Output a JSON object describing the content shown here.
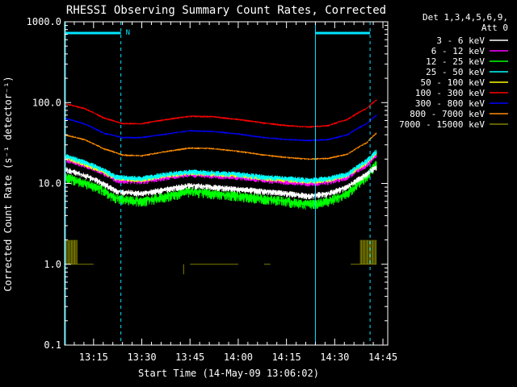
{
  "chart_data": {
    "type": "line",
    "title": "RHESSI Observing Summary Count Rates, Corrected",
    "xlabel": "Start Time (14-May-09 13:06:02)",
    "ylabel": "Corrected Count Rate (s⁻¹ detector⁻¹)",
    "ylog": true,
    "ylim": [
      0.1,
      1000
    ],
    "xlim_minutes": [
      6.0,
      103.0
    ],
    "x_ticks": [
      {
        "label": "13:15",
        "min": 15
      },
      {
        "label": "13:30",
        "min": 30
      },
      {
        "label": "13:45",
        "min": 45
      },
      {
        "label": "14:00",
        "min": 60
      },
      {
        "label": "14:15",
        "min": 75
      },
      {
        "label": "14:30",
        "min": 90
      },
      {
        "label": "14:45",
        "min": 105
      }
    ],
    "y_ticks": [
      {
        "label": "0.1",
        "v": 0.1
      },
      {
        "label": "1.0",
        "v": 1.0
      },
      {
        "label": "10.0",
        "v": 10.0
      },
      {
        "label": "100.0",
        "v": 100.0
      },
      {
        "label": "1000.0",
        "v": 1000.0
      }
    ],
    "legend_header": [
      "Det 1,3,4,5,6,9,",
      "Att 0"
    ],
    "night_marker_label": "N",
    "series": [
      {
        "name": "3 - 6 keV",
        "color": "#ffffff",
        "points": [
          [
            6,
            15
          ],
          [
            16,
            11
          ],
          [
            22,
            8
          ],
          [
            30,
            7.5
          ],
          [
            38,
            8.5
          ],
          [
            45,
            9.5
          ],
          [
            52,
            9
          ],
          [
            60,
            8.5
          ],
          [
            68,
            8
          ],
          [
            75,
            7.5
          ],
          [
            82,
            7
          ],
          [
            88,
            7.5
          ],
          [
            94,
            9
          ],
          [
            100,
            13
          ],
          [
            103,
            16
          ]
        ]
      },
      {
        "name": "6 - 12 keV",
        "color": "#ff00ff",
        "points": [
          [
            6,
            20
          ],
          [
            16,
            15
          ],
          [
            22,
            11
          ],
          [
            30,
            10.5
          ],
          [
            38,
            12
          ],
          [
            45,
            13
          ],
          [
            52,
            12.5
          ],
          [
            60,
            12
          ],
          [
            68,
            11
          ],
          [
            75,
            10.5
          ],
          [
            82,
            10
          ],
          [
            88,
            10.5
          ],
          [
            94,
            12
          ],
          [
            100,
            17
          ],
          [
            103,
            22
          ]
        ]
      },
      {
        "name": "12 - 25 keV",
        "color": "#00ff00",
        "points": [
          [
            6,
            12
          ],
          [
            16,
            9
          ],
          [
            22,
            6.5
          ],
          [
            30,
            6
          ],
          [
            38,
            7
          ],
          [
            45,
            8
          ],
          [
            52,
            7.5
          ],
          [
            60,
            7
          ],
          [
            68,
            6.5
          ],
          [
            75,
            6
          ],
          [
            82,
            5.5
          ],
          [
            88,
            6
          ],
          [
            94,
            7.5
          ],
          [
            100,
            12
          ],
          [
            103,
            18
          ]
        ]
      },
      {
        "name": "25 - 50 keV",
        "color": "#00ffff",
        "points": [
          [
            6,
            22
          ],
          [
            16,
            16
          ],
          [
            22,
            12
          ],
          [
            30,
            11.5
          ],
          [
            38,
            13
          ],
          [
            45,
            14
          ],
          [
            52,
            13.5
          ],
          [
            60,
            13
          ],
          [
            68,
            12
          ],
          [
            75,
            11.5
          ],
          [
            82,
            11
          ],
          [
            88,
            11.5
          ],
          [
            94,
            13
          ],
          [
            100,
            19
          ],
          [
            103,
            25
          ]
        ]
      },
      {
        "name": "50 - 100 keV",
        "color": "#ffff00",
        "points": [
          [
            6,
            21
          ],
          [
            16,
            15
          ],
          [
            22,
            11.5
          ],
          [
            30,
            11
          ],
          [
            38,
            12.5
          ],
          [
            45,
            13.5
          ],
          [
            52,
            13
          ],
          [
            60,
            12.5
          ],
          [
            68,
            11.5
          ],
          [
            75,
            11
          ],
          [
            82,
            10.5
          ],
          [
            88,
            11
          ],
          [
            94,
            12.5
          ],
          [
            100,
            18
          ],
          [
            103,
            24
          ]
        ]
      },
      {
        "name": "100 - 300 keV",
        "color": "#ff0000",
        "points": [
          [
            6,
            97
          ],
          [
            12,
            85
          ],
          [
            18,
            65
          ],
          [
            24,
            55
          ],
          [
            30,
            55
          ],
          [
            38,
            62
          ],
          [
            45,
            68
          ],
          [
            52,
            67
          ],
          [
            60,
            62
          ],
          [
            68,
            56
          ],
          [
            75,
            52
          ],
          [
            82,
            50
          ],
          [
            88,
            52
          ],
          [
            94,
            62
          ],
          [
            100,
            85
          ],
          [
            103,
            108
          ]
        ]
      },
      {
        "name": "300 - 800 keV",
        "color": "#0000ff",
        "points": [
          [
            6,
            64
          ],
          [
            12,
            55
          ],
          [
            18,
            42
          ],
          [
            24,
            37
          ],
          [
            30,
            37
          ],
          [
            38,
            41
          ],
          [
            45,
            45
          ],
          [
            52,
            44
          ],
          [
            60,
            41
          ],
          [
            68,
            37
          ],
          [
            75,
            35
          ],
          [
            82,
            34
          ],
          [
            88,
            35
          ],
          [
            94,
            40
          ],
          [
            100,
            55
          ],
          [
            103,
            70
          ]
        ]
      },
      {
        "name": "800 - 7000 keV",
        "color": "#ff8c00",
        "points": [
          [
            6,
            40
          ],
          [
            12,
            35
          ],
          [
            18,
            27
          ],
          [
            24,
            22.5
          ],
          [
            30,
            22
          ],
          [
            38,
            25
          ],
          [
            45,
            27.5
          ],
          [
            52,
            27
          ],
          [
            60,
            25
          ],
          [
            68,
            22.5
          ],
          [
            75,
            21
          ],
          [
            82,
            20
          ],
          [
            88,
            20.5
          ],
          [
            94,
            23
          ],
          [
            100,
            32
          ],
          [
            103,
            42
          ]
        ]
      },
      {
        "name": "7000 - 15000 keV",
        "color": "#808000",
        "points": [
          [
            6,
            1.0
          ],
          [
            103,
            1.0
          ]
        ]
      }
    ]
  }
}
